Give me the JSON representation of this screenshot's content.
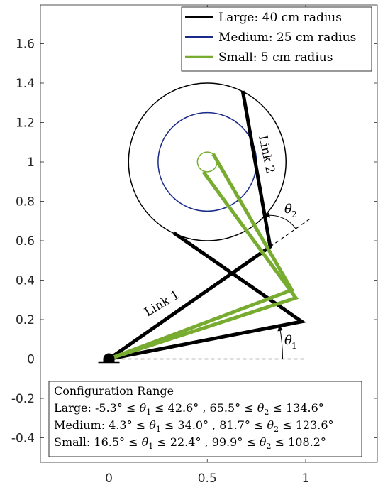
{
  "chart_data": {
    "type": "line",
    "title": "",
    "xlabel": "",
    "ylabel": "",
    "xlim": [
      -0.35,
      1.37
    ],
    "ylim": [
      -0.55,
      1.78
    ],
    "grid": false,
    "legend_position": "top-right",
    "x_ticks": [
      0,
      0.5,
      1
    ],
    "x_tick_labels": [
      "0",
      "0.5",
      "1"
    ],
    "y_ticks": [
      -0.4,
      -0.2,
      0,
      0.2,
      0.4,
      0.6,
      0.8,
      1,
      1.2,
      1.4,
      1.6
    ],
    "y_tick_labels": [
      "-0.4",
      "-0.2",
      "0",
      "0.2",
      "0.4",
      "0.6",
      "0.8",
      "1",
      "1.2",
      "1.4",
      "1.6"
    ],
    "colors": {
      "large": "#000000",
      "medium": "#1a2a8a",
      "small": "#77ac30"
    },
    "legend": [
      {
        "key": "large",
        "label": "Large: 40 cm radius"
      },
      {
        "key": "medium",
        "label": "Medium: 25 cm radius"
      },
      {
        "key": "small",
        "label": "Small: 5 cm radius"
      }
    ],
    "circles": [
      {
        "key": "large",
        "center": [
          0.5,
          1.0
        ],
        "radius": 0.4
      },
      {
        "key": "medium",
        "center": [
          0.5,
          1.0
        ],
        "radius": 0.25
      },
      {
        "key": "small",
        "center": [
          0.5,
          1.0
        ],
        "radius": 0.05
      }
    ],
    "series": [
      {
        "key": "large",
        "values": [
          [
            0,
            0
          ],
          [
            0.98,
            0.19
          ],
          [
            0.33,
            0.64
          ]
        ]
      },
      {
        "key": "large",
        "values": [
          [
            0,
            0
          ],
          [
            0.82,
            0.57
          ],
          [
            0.68,
            1.36
          ]
        ]
      },
      {
        "key": "small",
        "values": [
          [
            0,
            0
          ],
          [
            0.95,
            0.31
          ],
          [
            0.48,
            0.95
          ]
        ]
      },
      {
        "key": "small",
        "values": [
          [
            0,
            0
          ],
          [
            0.93,
            0.35
          ],
          [
            0.53,
            1.04
          ]
        ]
      }
    ],
    "reference_line": {
      "from": [
        0,
        0
      ],
      "to": [
        1.0,
        0
      ]
    },
    "link1_extension": {
      "from": [
        0.82,
        0.57
      ],
      "to": [
        1.02,
        0.71
      ]
    },
    "base_marker": [
      0,
      0
    ],
    "annotations": {
      "link1": "Link 1",
      "link2": "Link 2",
      "theta1": "θ",
      "theta1_sub": "1",
      "theta2": "θ",
      "theta2_sub": "2"
    },
    "config_box": {
      "title": "Configuration Range",
      "lines": [
        "Large: -5.3° ≤ θ1 ≤ 42.6° , 65.5° ≤ θ2 ≤ 134.6°",
        "Medium: 4.3° ≤ θ1 ≤ 34.0° , 81.7° ≤ θ2 ≤ 123.6°",
        "Small: 16.5° ≤ θ1 ≤ 22.4° , 99.9° ≤ θ2 ≤ 108.2°"
      ]
    }
  }
}
